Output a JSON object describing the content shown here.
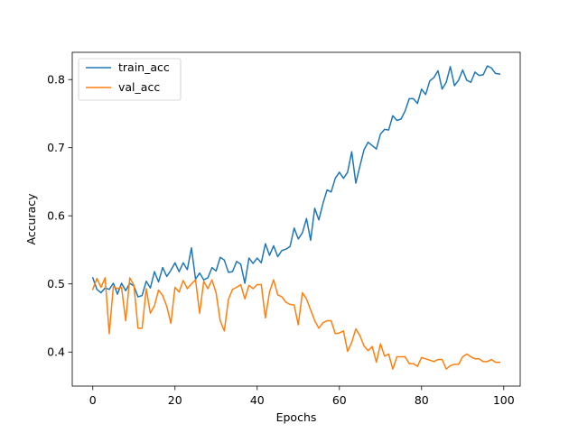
{
  "chart_data": {
    "type": "line",
    "title": "",
    "xlabel": "Epochs",
    "ylabel": "Accuracy",
    "xlim": [
      -5,
      104
    ],
    "ylim": [
      0.35,
      0.84
    ],
    "xticks": [
      0,
      20,
      40,
      60,
      80,
      100
    ],
    "yticks": [
      0.4,
      0.5,
      0.6,
      0.7,
      0.8
    ],
    "grid": false,
    "legend_position": "top-left",
    "x": [
      0,
      1,
      2,
      3,
      4,
      5,
      6,
      7,
      8,
      9,
      10,
      11,
      12,
      13,
      14,
      15,
      16,
      17,
      18,
      19,
      20,
      21,
      22,
      23,
      24,
      25,
      26,
      27,
      28,
      29,
      30,
      31,
      32,
      33,
      34,
      35,
      36,
      37,
      38,
      39,
      40,
      41,
      42,
      43,
      44,
      45,
      46,
      47,
      48,
      49,
      50,
      51,
      52,
      53,
      54,
      55,
      56,
      57,
      58,
      59,
      60,
      61,
      62,
      63,
      64,
      65,
      66,
      67,
      68,
      69,
      70,
      71,
      72,
      73,
      74,
      75,
      76,
      77,
      78,
      79,
      80,
      81,
      82,
      83,
      84,
      85,
      86,
      87,
      88,
      89,
      90,
      91,
      92,
      93,
      94,
      95,
      96,
      97,
      98,
      99
    ],
    "series": [
      {
        "name": "train_acc",
        "color": "#1f77b4",
        "values": [
          0.509,
          0.492,
          0.487,
          0.494,
          0.492,
          0.501,
          0.485,
          0.501,
          0.49,
          0.501,
          0.497,
          0.481,
          0.483,
          0.504,
          0.494,
          0.518,
          0.503,
          0.524,
          0.511,
          0.52,
          0.531,
          0.518,
          0.531,
          0.521,
          0.553,
          0.507,
          0.516,
          0.506,
          0.509,
          0.524,
          0.519,
          0.539,
          0.535,
          0.517,
          0.518,
          0.533,
          0.529,
          0.501,
          0.538,
          0.53,
          0.538,
          0.531,
          0.559,
          0.542,
          0.556,
          0.54,
          0.549,
          0.551,
          0.555,
          0.582,
          0.566,
          0.575,
          0.596,
          0.564,
          0.611,
          0.594,
          0.618,
          0.638,
          0.635,
          0.655,
          0.664,
          0.655,
          0.664,
          0.694,
          0.648,
          0.673,
          0.697,
          0.708,
          0.703,
          0.698,
          0.72,
          0.727,
          0.726,
          0.747,
          0.74,
          0.742,
          0.754,
          0.772,
          0.772,
          0.765,
          0.786,
          0.778,
          0.798,
          0.803,
          0.813,
          0.786,
          0.796,
          0.819,
          0.791,
          0.799,
          0.814,
          0.799,
          0.796,
          0.811,
          0.806,
          0.807,
          0.82,
          0.817,
          0.809,
          0.808
        ]
      },
      {
        "name": "val_acc",
        "color": "#ff7f0e",
        "values": [
          0.492,
          0.508,
          0.495,
          0.509,
          0.427,
          0.496,
          0.493,
          0.495,
          0.446,
          0.509,
          0.498,
          0.435,
          0.435,
          0.493,
          0.457,
          0.468,
          0.491,
          0.483,
          0.467,
          0.442,
          0.495,
          0.488,
          0.505,
          0.493,
          0.5,
          0.506,
          0.457,
          0.504,
          0.493,
          0.506,
          0.487,
          0.446,
          0.431,
          0.477,
          0.492,
          0.495,
          0.499,
          0.478,
          0.498,
          0.493,
          0.499,
          0.499,
          0.45,
          0.488,
          0.506,
          0.484,
          0.481,
          0.473,
          0.47,
          0.469,
          0.44,
          0.487,
          0.478,
          0.462,
          0.446,
          0.435,
          0.443,
          0.446,
          0.446,
          0.427,
          0.428,
          0.431,
          0.401,
          0.414,
          0.434,
          0.424,
          0.409,
          0.402,
          0.408,
          0.385,
          0.412,
          0.394,
          0.397,
          0.375,
          0.393,
          0.393,
          0.393,
          0.383,
          0.383,
          0.379,
          0.392,
          0.39,
          0.388,
          0.386,
          0.389,
          0.389,
          0.375,
          0.38,
          0.382,
          0.382,
          0.393,
          0.397,
          0.393,
          0.39,
          0.39,
          0.386,
          0.386,
          0.389,
          0.385,
          0.385
        ]
      }
    ]
  }
}
